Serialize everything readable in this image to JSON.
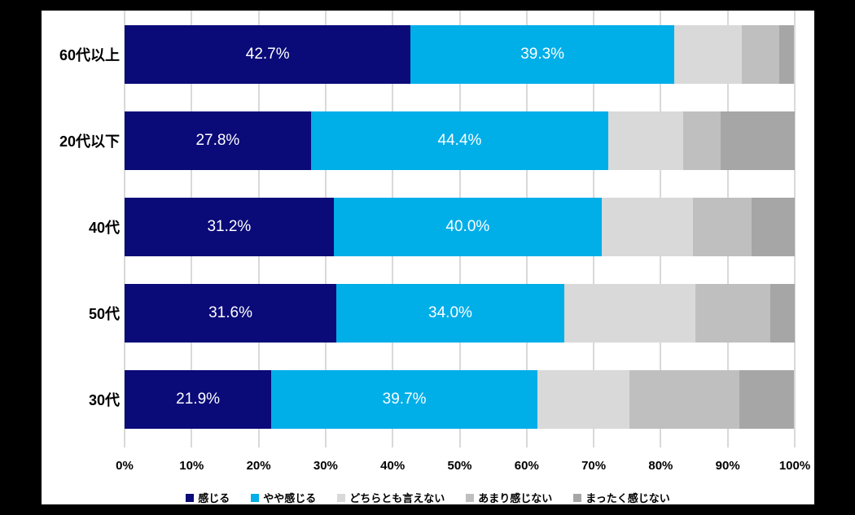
{
  "colors": {
    "page_background": "#000000",
    "chart_background": "#ffffff",
    "gridline": "#d9d9d9",
    "data_label_text": "#ffffff",
    "axis_text": "#000000"
  },
  "chart_data": {
    "type": "bar",
    "orientation": "horizontal",
    "stacked": true,
    "grid": true,
    "legend_position": "bottom",
    "title": "",
    "xlabel": "",
    "ylabel": "",
    "xlim": [
      0,
      100
    ],
    "x_ticks": [
      "0%",
      "10%",
      "20%",
      "30%",
      "40%",
      "50%",
      "60%",
      "70%",
      "80%",
      "90%",
      "100%"
    ],
    "categories": [
      "60代以上",
      "20代以下",
      "40代",
      "50代",
      "30代"
    ],
    "series": [
      {
        "name": "感じる",
        "color": "#0a0a78",
        "show_labels": true,
        "values": [
          42.7,
          27.8,
          31.2,
          31.6,
          21.9
        ]
      },
      {
        "name": "やや感じる",
        "color": "#00aee8",
        "show_labels": true,
        "values": [
          39.3,
          44.4,
          40.0,
          34.0,
          39.7
        ]
      },
      {
        "name": "どちらとも言えない",
        "color": "#d9d9d9",
        "show_labels": false,
        "values": [
          10.1,
          11.1,
          13.6,
          19.6,
          13.7
        ]
      },
      {
        "name": "あまり感じない",
        "color": "#bfbfbf",
        "show_labels": false,
        "values": [
          5.6,
          5.6,
          8.8,
          11.2,
          16.4
        ]
      },
      {
        "name": "まったく感じない",
        "color": "#a6a6a6",
        "show_labels": false,
        "values": [
          2.2,
          11.1,
          6.4,
          3.6,
          8.2
        ]
      }
    ],
    "data_labels": [
      "42.7%",
      "39.3%",
      "27.8%",
      "44.4%",
      "31.2%",
      "40.0%",
      "31.6%",
      "34.0%",
      "21.9%",
      "39.7%"
    ]
  }
}
